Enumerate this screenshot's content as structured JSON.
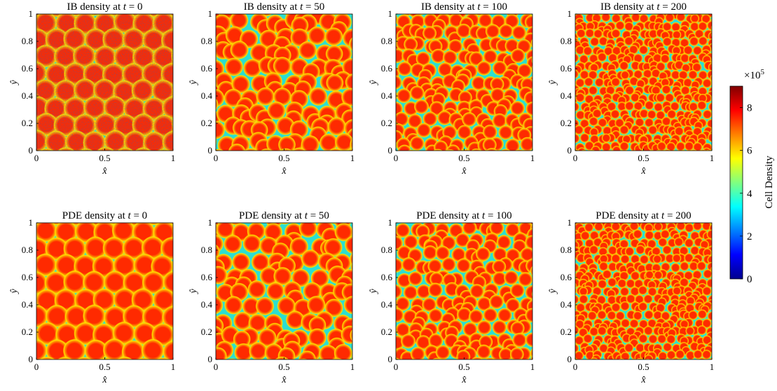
{
  "chart_data": [
    {
      "type": "heatmap",
      "title_prefix": "IB density at ",
      "title_var": "t",
      "title_eq": " = 0",
      "time": 0,
      "model": "IB",
      "pattern": {
        "nx": 7,
        "ny": 8,
        "spot_radius": 0.068,
        "noise": "high"
      },
      "xlabel": "x̂",
      "ylabel": "ŷ",
      "xticks": [
        "0",
        "0.5",
        "1"
      ],
      "yticks": [
        "0",
        "0.2",
        "0.4",
        "0.6",
        "0.8",
        "1"
      ],
      "xlim": [
        0,
        1
      ],
      "ylim": [
        0,
        1
      ]
    },
    {
      "type": "heatmap",
      "title_prefix": "IB density at ",
      "title_var": "t",
      "title_eq": " = 50",
      "time": 50,
      "model": "IB",
      "pattern": {
        "nx": 8,
        "ny": 9,
        "spot_radius": 0.055,
        "noise": "medium"
      },
      "xlabel": "x̂",
      "ylabel": "ŷ",
      "xticks": [
        "0",
        "0.5",
        "1"
      ],
      "yticks": [
        "0",
        "0.2",
        "0.4",
        "0.6",
        "0.8",
        "1"
      ],
      "xlim": [
        0,
        1
      ],
      "ylim": [
        0,
        1
      ]
    },
    {
      "type": "heatmap",
      "title_prefix": "IB density at ",
      "title_var": "t",
      "title_eq": " = 100",
      "time": 100,
      "model": "IB",
      "pattern": {
        "nx": 10,
        "ny": 11,
        "spot_radius": 0.044,
        "noise": "medium"
      },
      "xlabel": "x̂",
      "ylabel": "ŷ",
      "xticks": [
        "0",
        "0.5",
        "1"
      ],
      "yticks": [
        "0",
        "0.2",
        "0.4",
        "0.6",
        "0.8",
        "1"
      ],
      "xlim": [
        0,
        1
      ],
      "ylim": [
        0,
        1
      ]
    },
    {
      "type": "heatmap",
      "title_prefix": "IB density at ",
      "title_var": "t",
      "title_eq": " = 200",
      "time": 200,
      "model": "IB",
      "pattern": {
        "nx": 15,
        "ny": 17,
        "spot_radius": 0.029,
        "noise": "low"
      },
      "xlabel": "x̂",
      "ylabel": "ŷ",
      "xticks": [
        "0",
        "0.5",
        "1"
      ],
      "yticks": [
        "0",
        "0.2",
        "0.4",
        "0.6",
        "0.8",
        "1"
      ],
      "xlim": [
        0,
        1
      ],
      "ylim": [
        0,
        1
      ]
    },
    {
      "type": "heatmap",
      "title_prefix": "PDE density at ",
      "title_var": "t",
      "title_eq": " = 0",
      "time": 0,
      "model": "PDE",
      "pattern": {
        "nx": 7,
        "ny": 8,
        "spot_radius": 0.068,
        "noise": "none"
      },
      "xlabel": "x̂",
      "ylabel": "ŷ",
      "xticks": [
        "0",
        "0.5",
        "1"
      ],
      "yticks": [
        "0",
        "0.2",
        "0.4",
        "0.6",
        "0.8",
        "1"
      ],
      "xlim": [
        0,
        1
      ],
      "ylim": [
        0,
        1
      ]
    },
    {
      "type": "heatmap",
      "title_prefix": "PDE density at ",
      "title_var": "t",
      "title_eq": " = 50",
      "time": 50,
      "model": "PDE",
      "pattern": {
        "nx": 8,
        "ny": 9,
        "spot_radius": 0.055,
        "noise": "none"
      },
      "xlabel": "x̂",
      "ylabel": "ŷ",
      "xticks": [
        "0",
        "0.5",
        "1"
      ],
      "yticks": [
        "0",
        "0.2",
        "0.4",
        "0.6",
        "0.8",
        "1"
      ],
      "xlim": [
        0,
        1
      ],
      "ylim": [
        0,
        1
      ]
    },
    {
      "type": "heatmap",
      "title_prefix": "PDE density at ",
      "title_var": "t",
      "title_eq": " = 100",
      "time": 100,
      "model": "PDE",
      "pattern": {
        "nx": 10,
        "ny": 11,
        "spot_radius": 0.044,
        "noise": "none"
      },
      "xlabel": "x̂",
      "ylabel": "ŷ",
      "xticks": [
        "0",
        "0.5",
        "1"
      ],
      "yticks": [
        "0",
        "0.2",
        "0.4",
        "0.6",
        "0.8",
        "1"
      ],
      "xlim": [
        0,
        1
      ],
      "ylim": [
        0,
        1
      ]
    },
    {
      "type": "heatmap",
      "title_prefix": "PDE density at ",
      "title_var": "t",
      "title_eq": " = 200",
      "time": 200,
      "model": "PDE",
      "pattern": {
        "nx": 15,
        "ny": 17,
        "spot_radius": 0.029,
        "noise": "none"
      },
      "xlabel": "x̂",
      "ylabel": "ŷ",
      "xticks": [
        "0",
        "0.5",
        "1"
      ],
      "yticks": [
        "0",
        "0.2",
        "0.4",
        "0.6",
        "0.8",
        "1"
      ],
      "xlim": [
        0,
        1
      ],
      "ylim": [
        0,
        1
      ]
    }
  ],
  "colorbar": {
    "label": "Cell Density",
    "multiplier_base": "×10",
    "multiplier_exp": "5",
    "ticks": [
      "0",
      "2",
      "4",
      "6",
      "8"
    ],
    "range": [
      0,
      9
    ],
    "colormap": [
      "#00008f",
      "#0000ff",
      "#0080ff",
      "#00ffff",
      "#80ff80",
      "#ffff00",
      "#ff8000",
      "#ff0000",
      "#800000"
    ]
  },
  "colors": {
    "background": "#00ccff",
    "spot_core": "#ff2a00",
    "spot_rim": "#ffdd00",
    "depleted": "#0000cc"
  }
}
